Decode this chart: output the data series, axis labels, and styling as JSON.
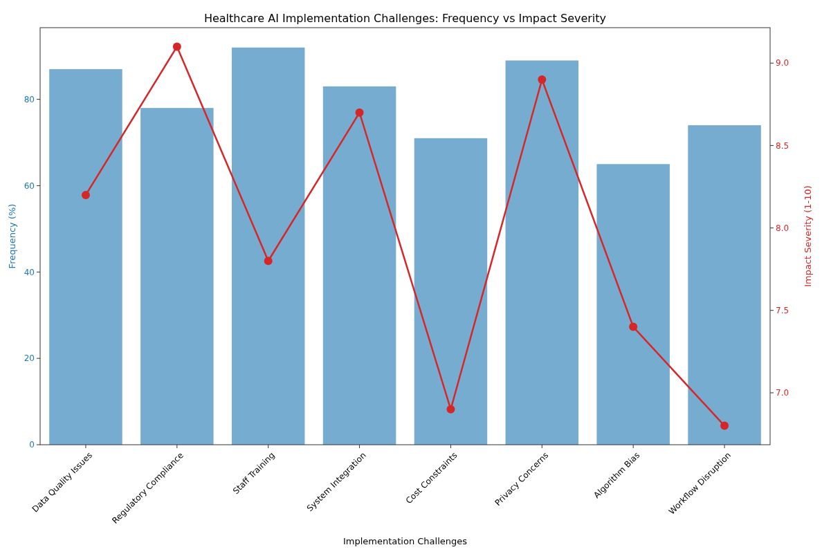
{
  "chart_data": {
    "type": "bar",
    "title": "Healthcare AI Implementation Challenges: Frequency vs Impact Severity",
    "xlabel": "Implementation Challenges",
    "ylabel": "Frequency (%)",
    "y2label": "Impact Severity (1-10)",
    "categories": [
      "Data Quality Issues",
      "Regulatory Compliance",
      "Staff Training",
      "System Integration",
      "Cost Constraints",
      "Privacy Concerns",
      "Algorithm Bias",
      "Workflow Disruption"
    ],
    "series": [
      {
        "color": "#77acd1",
        "values": [
          87,
          78,
          92,
          83,
          71,
          89,
          65,
          74
        ]
      },
      {
        "type": "line",
        "axis": "y2",
        "color": "#d62728",
        "values": [
          8.2,
          9.1,
          7.8,
          8.7,
          6.9,
          8.9,
          7.4,
          6.8
        ]
      }
    ],
    "ylim": [
      0,
      96.6
    ],
    "yticks": [
      0,
      20,
      40,
      60,
      80
    ],
    "y2lim": [
      6.685,
      9.215
    ],
    "y2ticks": [
      {
        "value": 7,
        "label": "7.0"
      },
      {
        "value": 7.5,
        "label": "7.5"
      },
      {
        "value": 8,
        "label": "8.0"
      },
      {
        "value": 8.5,
        "label": "8.5"
      },
      {
        "value": 9,
        "label": "9.0"
      }
    ],
    "marker": "circle",
    "line_style": "solid",
    "grid": false
  }
}
